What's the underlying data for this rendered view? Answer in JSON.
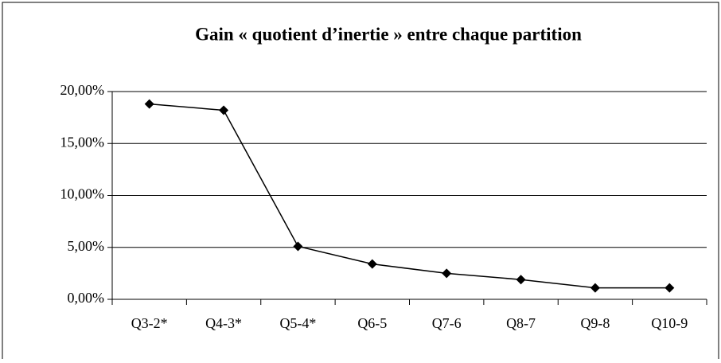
{
  "chart_data": {
    "type": "line",
    "title": "Gain « quotient d’inertie » entre chaque partition",
    "categories": [
      "Q3-2*",
      "Q4-3*",
      "Q5-4*",
      "Q6-5",
      "Q7-6",
      "Q8-7",
      "Q9-8",
      "Q10-9"
    ],
    "series": [
      {
        "name": "Gain",
        "color": "#000000",
        "values": [
          18.8,
          18.2,
          5.1,
          3.4,
          2.5,
          1.9,
          1.1,
          1.1
        ]
      }
    ],
    "ylim": [
      0,
      20
    ],
    "yticks": [
      {
        "value": 0,
        "label": "0,00%"
      },
      {
        "value": 5,
        "label": "5,00%"
      },
      {
        "value": 10,
        "label": "10,00%"
      },
      {
        "value": 15,
        "label": "15,00%"
      },
      {
        "value": 20,
        "label": "20,00%"
      }
    ],
    "grid": true
  }
}
